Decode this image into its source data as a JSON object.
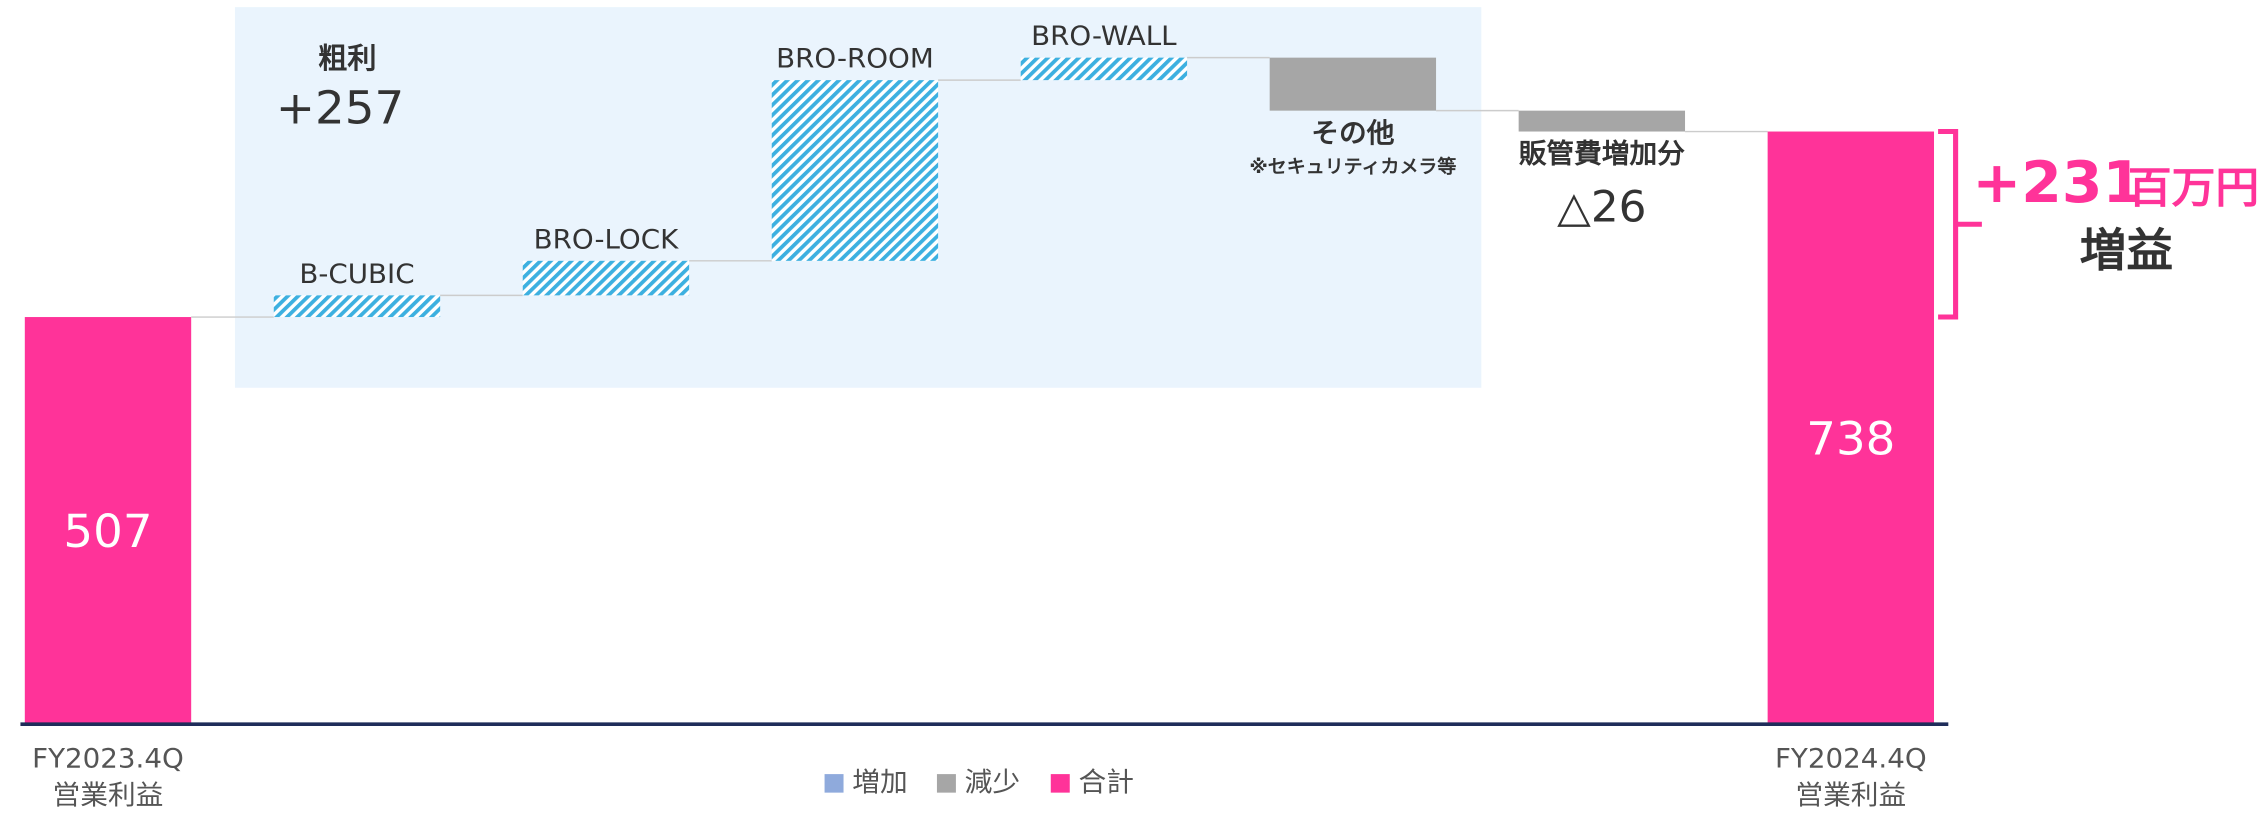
{
  "chart_data": {
    "type": "waterfall",
    "categories": [
      "FY2023.4Q",
      "B-CUBIC",
      "BRO-LOCK",
      "BRO-ROOM",
      "BRO-WALL",
      "その他",
      "販管費増加分",
      "FY2024.4Q"
    ],
    "category_notes": [
      "営業利益",
      null,
      null,
      null,
      null,
      "※セキュリティカメラ等",
      null,
      "営業利益"
    ],
    "values": [
      507,
      27,
      43,
      225,
      28,
      -66,
      -26,
      738
    ],
    "value_labels": [
      "507",
      null,
      null,
      null,
      null,
      null,
      "△26",
      "738"
    ],
    "kinds": [
      "total",
      "increase",
      "increase",
      "increase",
      "increase",
      "decrease",
      "decrease",
      "total"
    ],
    "colors": {
      "total": "#ff3399",
      "increase": "#3db0e0",
      "decrease": "#a6a6a6"
    },
    "ylim": [
      0,
      900
    ],
    "legend": [
      {
        "name": "増加",
        "color": "#8faadc"
      },
      {
        "name": "減少",
        "color": "#a6a6a6"
      },
      {
        "name": "合計",
        "color": "#ff3399"
      }
    ],
    "annotations": {
      "gross_label": "粗利",
      "gross_value": "+257",
      "change_value": "+231",
      "change_unit": "百万円",
      "change_label": "増益"
    }
  }
}
